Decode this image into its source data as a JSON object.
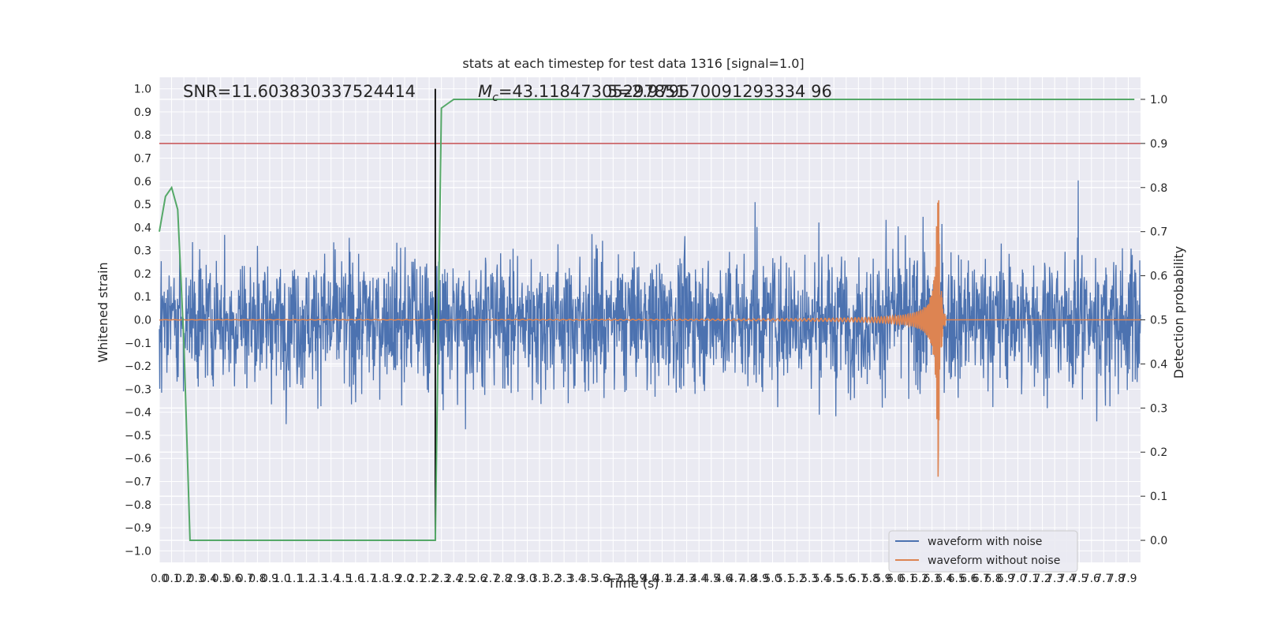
{
  "chart_data": {
    "type": "line",
    "title": "stats at each timestep for test data 1316 [signal=1.0]",
    "xlabel": "Time (s)",
    "ylabel": "Whitened strain",
    "y2label": "Detection probability",
    "xlim": [
      0.0,
      8.0
    ],
    "ylim": [
      -1.05,
      1.05
    ],
    "y2lim": [
      -0.05,
      1.05
    ],
    "xticks": [
      "0.0",
      "0.1",
      "0.2",
      "0.3",
      "0.4",
      "0.5",
      "0.6",
      "0.7",
      "0.8",
      "0.9",
      "1.0",
      "1.1",
      "1.2",
      "1.3",
      "1.4",
      "1.5",
      "1.6",
      "1.7",
      "1.8",
      "1.9",
      "2.0",
      "2.1",
      "2.2",
      "2.3",
      "2.4",
      "2.5",
      "2.6",
      "2.7",
      "2.8",
      "2.9",
      "3.0",
      "3.1",
      "3.2",
      "3.3",
      "3.4",
      "3.5",
      "3.6",
      "3.7",
      "3.8",
      "3.9",
      "4.0",
      "4.1",
      "4.2",
      "4.3",
      "4.4",
      "4.5",
      "4.6",
      "4.7",
      "4.8",
      "4.9",
      "5.0",
      "5.1",
      "5.2",
      "5.3",
      "5.4",
      "5.5",
      "5.6",
      "5.7",
      "5.8",
      "5.9",
      "6.0",
      "6.1",
      "6.2",
      "6.3",
      "6.4",
      "6.5",
      "6.6",
      "6.7",
      "6.8",
      "6.9",
      "7.0",
      "7.1",
      "7.2",
      "7.3",
      "7.4",
      "7.5",
      "7.6",
      "7.7",
      "7.8",
      "7.9"
    ],
    "yticks": [
      "1.0",
      "0.9",
      "0.8",
      "0.7",
      "0.6",
      "0.5",
      "0.4",
      "0.3",
      "0.2",
      "0.1",
      "0.0",
      "-0.1",
      "-0.2",
      "-0.3",
      "-0.4",
      "-0.5",
      "-0.6",
      "-0.7",
      "-0.8",
      "-0.9",
      "-1.0"
    ],
    "y2ticks": [
      "1.0",
      "0.9",
      "0.8",
      "0.7",
      "0.6",
      "0.5",
      "0.4",
      "0.3",
      "0.2",
      "0.1",
      "0.0"
    ],
    "annotations": {
      "snr": "SNR=11.603830337524414",
      "mc_prefix": "M",
      "mc_sub": "c",
      "mc_value": "=43.11847305297851",
      "mc_overlap": "5=2.979570091293334 96"
    },
    "threshold_y2": 0.9,
    "marker_x": 2.25,
    "merger_x": 6.35,
    "series": [
      {
        "name": "waveform with noise",
        "color": "#4c72b0",
        "kind": "noise",
        "amplitude_envelope": [
          -1.0,
          1.0
        ]
      },
      {
        "name": "waveform without noise",
        "color": "#dd8452",
        "kind": "chirp",
        "peak": 0.68,
        "trough": -0.65
      },
      {
        "name": "",
        "color": "#55a868",
        "kind": "probability",
        "x": [
          0.0,
          0.05,
          0.1,
          0.15,
          0.2,
          0.25,
          0.3,
          0.4,
          2.2,
          2.25,
          2.3,
          2.35,
          2.4,
          7.95
        ],
        "y": [
          0.7,
          0.78,
          0.8,
          0.75,
          0.45,
          0.0,
          0.0,
          0.0,
          0.0,
          0.0,
          0.98,
          0.99,
          1.0,
          1.0
        ]
      },
      {
        "name": "",
        "color": "#c44e52",
        "kind": "threshold"
      }
    ],
    "legend": {
      "location": "lower-right",
      "entries": [
        "waveform with noise",
        "waveform without noise"
      ]
    },
    "grid": true
  }
}
